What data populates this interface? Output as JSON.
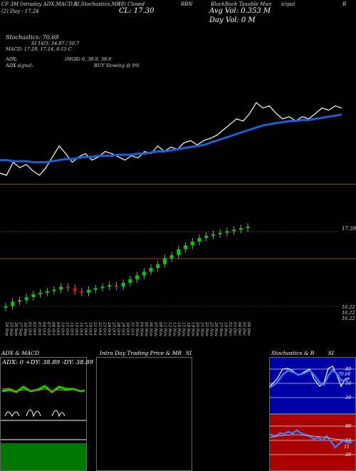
{
  "header": {
    "line1_left": "CF 3M Intraday ADX,MACD,R",
    "line1_mid": "SI,Stochastics,MR",
    "line1_cl_prefix": "(8) Closed",
    "line1_symbol": "BBN",
    "line1_right": "BlackRock Taxable Mun",
    "line1_right2": "icipal",
    "line1_end": "B",
    "line2_left": "(2) Day - 17.24",
    "line2_cl": "CL: 17.30",
    "line2_avg": "Avg Vol: 0.353 M",
    "line3_day": "Day Vol: 0 M"
  },
  "indicators": {
    "stoch": "Stochastics: 70.69",
    "rsi": "SI 14/3: 54.87 / 50.7",
    "macd": "MACD: 17.29, 17.14, 0.15 C",
    "adx": "ADX:",
    "mgr": "(MGR) 0, 38.9, 38.9",
    "adx_signal": "ADX signal:",
    "buy": "BUY Slowing @ 0%"
  },
  "price_labels": {
    "right_top": "17.39",
    "bottom1": "16.22",
    "bottom2": "16.22",
    "bottom3": "16.22"
  },
  "dates": [
    "24 Sep",
    "25 Sep",
    "26 Sep",
    "27 Sep",
    "30 Sep",
    "01 Oct",
    "02 Oct",
    "03 Oct",
    "04 Oct",
    "07 Oct",
    "08 Oct",
    "09 Oct",
    "10 Oct",
    "11 Oct",
    "14 Oct",
    "15 Oct",
    "16 Oct",
    "17 Oct",
    "18 Oct",
    "21 Oct",
    "22 Oct",
    "23 Oct",
    "24 Oct",
    "25 Oct",
    "28 Oct",
    "29 Oct",
    "30 Oct",
    "31 Oct",
    "01 Nov",
    "04 Nov",
    "05 Nov",
    "06 Nov",
    "07 Nov",
    "08 Nov",
    "11 Nov",
    "12 Nov",
    "13 Nov",
    "14 Nov",
    "15 Nov",
    "18 Nov",
    "19 Nov",
    "20 Nov",
    "21 Nov",
    "22 Nov",
    "25 Nov",
    "26 Nov",
    "27 Nov",
    "29 Nov",
    "02 Dec",
    "03 Dec",
    "04 Dec",
    "05 Dec",
    "06 Dec"
  ],
  "panels": {
    "adx_title": "ADX & MACD",
    "adx_values": "ADX: 0  +DY: 38.89 -DY: 38.89",
    "mr_title": "Intra Day Trading Price & MR",
    "mr_si": "SI",
    "stoch_title": "Stochastics & R",
    "stoch_si": "SI",
    "stoch_levels": [
      "80",
      "50",
      "20"
    ],
    "rsi_levels": [
      "80",
      "50",
      "20"
    ],
    "stoch_value": "70.69",
    "rsi_value": "55"
  },
  "colors": {
    "ma_line": "#1e5fd8",
    "price_line": "#ffffff",
    "up": "#00cc00",
    "down": "#dd1111",
    "divider": "#8b4a1a",
    "stoch_bg": "#0000a8",
    "rsi_bg": "#aa0000"
  },
  "chart_data": [
    {
      "type": "line",
      "series": [
        {
          "name": "Price",
          "values": [
            17.0,
            16.98,
            17.1,
            17.05,
            17.08,
            17.02,
            16.98,
            17.05,
            17.15,
            17.25,
            17.18,
            17.1,
            17.15,
            17.18,
            17.12,
            17.15,
            17.2,
            17.18,
            17.15,
            17.12,
            17.16,
            17.14,
            17.2,
            17.18,
            17.25,
            17.2,
            17.24,
            17.22,
            17.28,
            17.3,
            17.26,
            17.3,
            17.32,
            17.35,
            17.4,
            17.45,
            17.5,
            17.48,
            17.55,
            17.65,
            17.6,
            17.62,
            17.55,
            17.5,
            17.52,
            17.48,
            17.52,
            17.5,
            17.55,
            17.6,
            17.58,
            17.62,
            17.6
          ]
        },
        {
          "name": "MA",
          "values": [
            17.12,
            17.12,
            17.11,
            17.11,
            17.11,
            17.1,
            17.1,
            17.1,
            17.11,
            17.12,
            17.13,
            17.13,
            17.14,
            17.15,
            17.15,
            17.16,
            17.16,
            17.16,
            17.17,
            17.17,
            17.17,
            17.18,
            17.18,
            17.19,
            17.2,
            17.2,
            17.21,
            17.22,
            17.23,
            17.24,
            17.25,
            17.26,
            17.28,
            17.3,
            17.32,
            17.34,
            17.36,
            17.38,
            17.4,
            17.42,
            17.44,
            17.45,
            17.46,
            17.47,
            17.48,
            17.48,
            17.49,
            17.49,
            17.5,
            17.51,
            17.52,
            17.53,
            17.54
          ]
        }
      ]
    },
    {
      "type": "bar",
      "series": [
        {
          "name": "open",
          "values": [
            16.22,
            16.24,
            16.3,
            16.32,
            16.36,
            16.4,
            16.42,
            16.44,
            16.46,
            16.5,
            16.48,
            16.44,
            16.42,
            16.46,
            16.48,
            16.5,
            16.52,
            16.5,
            16.55,
            16.6,
            16.65,
            16.7,
            16.75,
            16.8,
            16.88,
            16.92,
            17.0,
            17.05,
            17.1,
            17.15,
            17.18,
            17.2,
            17.22,
            17.24,
            17.26,
            17.28
          ]
        },
        {
          "name": "close",
          "values": [
            16.24,
            16.3,
            16.32,
            16.36,
            16.4,
            16.42,
            16.44,
            16.46,
            16.5,
            16.48,
            16.44,
            16.42,
            16.46,
            16.48,
            16.5,
            16.52,
            16.5,
            16.55,
            16.6,
            16.65,
            16.7,
            16.75,
            16.8,
            16.88,
            16.92,
            17.0,
            17.05,
            17.1,
            17.15,
            17.18,
            17.2,
            17.22,
            17.24,
            17.26,
            17.28,
            17.3
          ]
        }
      ]
    }
  ]
}
